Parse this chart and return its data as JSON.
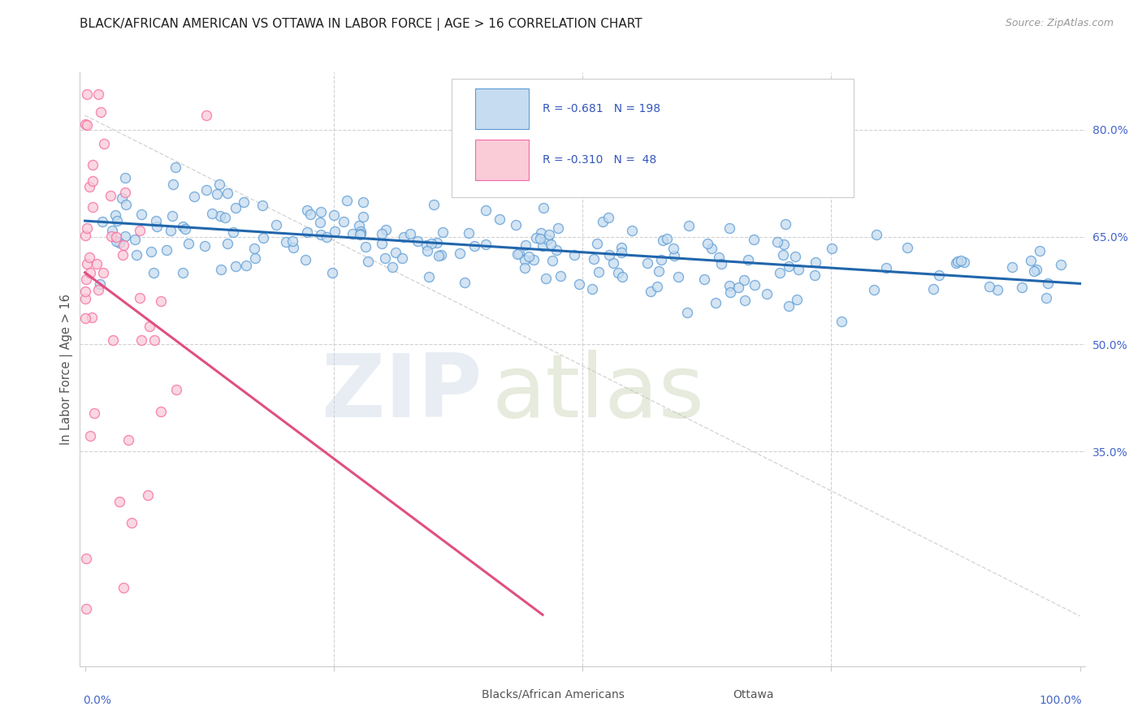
{
  "title": "BLACK/AFRICAN AMERICAN VS OTTAWA IN LABOR FORCE | AGE > 16 CORRELATION CHART",
  "source": "Source: ZipAtlas.com",
  "ylabel": "In Labor Force | Age > 16",
  "right_ytick_vals": [
    0.35,
    0.5,
    0.65,
    0.8
  ],
  "right_ytick_labels": [
    "35.0%",
    "50.0%",
    "65.0%",
    "80.0%"
  ],
  "blue_color_face": "#c6dcf0",
  "blue_color_edge": "#5b9bd5",
  "pink_color_face": "#f9ccd8",
  "pink_color_edge": "#f768a1",
  "blue_line_color": "#2166ac",
  "pink_line_color": "#e05080",
  "dash_line_color": "#cccccc",
  "background_color": "#ffffff",
  "axis_color": "#4466cc",
  "title_color": "#222222",
  "source_color": "#999999",
  "legend_text_color": "#3355bb",
  "legend_r1": "R = -0.681   N = 198",
  "legend_r2": "R = -0.310   N =  48",
  "bottom_legend1": "Blacks/African Americans",
  "bottom_legend2": "Ottawa",
  "ylim_low": 0.05,
  "ylim_high": 0.88,
  "xlim_low": -0.005,
  "xlim_high": 1.005
}
